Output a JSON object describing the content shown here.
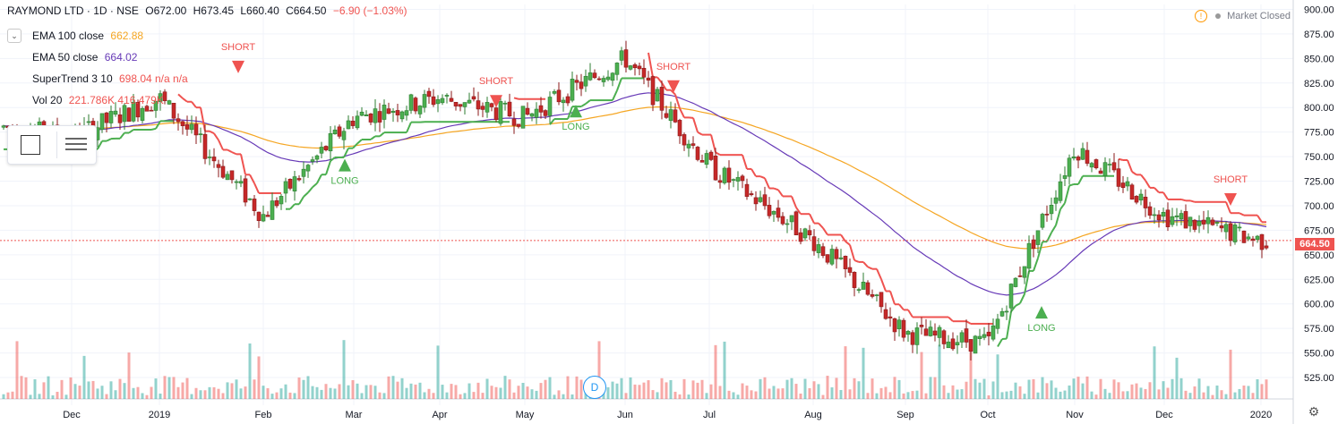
{
  "header": {
    "symbol": "RAYMOND LTD · 1D · NSE",
    "open": "O672.00",
    "high": "H673.45",
    "low": "L660.40",
    "close": "C664.50",
    "change": "−6.90 (−1.03%)"
  },
  "indicators": [
    {
      "name": "EMA 100 close",
      "value": "662.88",
      "color": "#f5a623"
    },
    {
      "name": "EMA 50 close",
      "value": "664.02",
      "color": "#673ab7"
    },
    {
      "name": "SuperTrend 3 10",
      "value": "698.04  n/a  n/a",
      "color": "#ef5350"
    },
    {
      "name": "Vol 20",
      "value": "221.786K  416.479K",
      "color": "#ef5350"
    }
  ],
  "status": {
    "market": "Market Closed",
    "warning_icon": "warning-icon"
  },
  "last_price_label": "664.50",
  "event_marker": "D",
  "colors": {
    "up": "#26a69a",
    "down": "#ef5350",
    "up_fill": "#4caf50",
    "down_fill": "#c62828",
    "ema100": "#f5a623",
    "ema50": "#673ab7",
    "st_long": "#4caf50",
    "st_short": "#ef5350"
  },
  "chart_data": {
    "type": "line",
    "title": "RAYMOND LTD · 1D · NSE",
    "xlabel": "",
    "ylabel": "",
    "x_ticks": [
      "Dec",
      "2019",
      "Feb",
      "Mar",
      "Apr",
      "May",
      "Jun",
      "Jul",
      "Aug",
      "Sep",
      "Oct",
      "Nov",
      "Dec",
      "2020"
    ],
    "y_ticks": [
      525,
      550,
      575,
      600,
      625,
      650,
      675,
      700,
      725,
      750,
      775,
      800,
      825,
      850,
      875,
      900
    ],
    "ylim": [
      515,
      905
    ],
    "grid": true,
    "last_price": 664.5,
    "close_series_monthly": [
      {
        "month": "Dec",
        "close": 770
      },
      {
        "month": "2019",
        "close": 810
      },
      {
        "month": "Feb",
        "close": 690
      },
      {
        "month": "Mar",
        "close": 790
      },
      {
        "month": "Apr",
        "close": 810
      },
      {
        "month": "May",
        "close": 790
      },
      {
        "month": "Jun",
        "close": 850
      },
      {
        "month": "Jul",
        "close": 740
      },
      {
        "month": "Aug",
        "close": 665
      },
      {
        "month": "Sep",
        "close": 570
      },
      {
        "month": "Oct",
        "close": 560
      },
      {
        "month": "Nov",
        "close": 760
      },
      {
        "month": "Dec",
        "close": 690
      },
      {
        "month": "2020",
        "close": 664.5
      }
    ],
    "signals": [
      {
        "label": "SHORT",
        "month": "Feb",
        "price": 835
      },
      {
        "label": "LONG",
        "month": "Mar",
        "price": 735
      },
      {
        "label": "SHORT",
        "month": "May",
        "price": 800
      },
      {
        "label": "LONG",
        "month": "May",
        "price": 790
      },
      {
        "label": "SHORT",
        "month": "Jun",
        "price": 815
      },
      {
        "label": "LONG",
        "month": "Oct",
        "price": 585
      },
      {
        "label": "SHORT",
        "month": "Dec",
        "price": 700
      }
    ]
  }
}
